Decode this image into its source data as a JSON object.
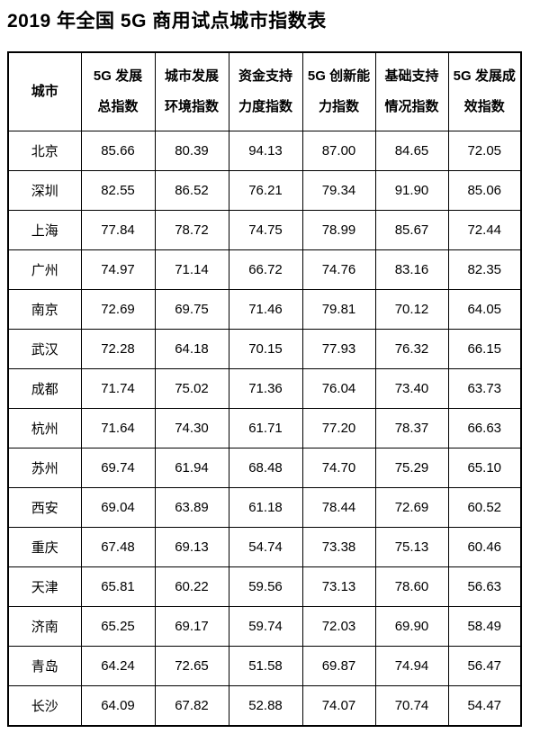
{
  "title": "2019 年全国 5G 商用试点城市指数表",
  "table": {
    "headers": [
      {
        "line1": "城市",
        "line2": ""
      },
      {
        "line1": "5G 发展",
        "line2": "总指数"
      },
      {
        "line1": "城市发展",
        "line2": "环境指数"
      },
      {
        "line1": "资金支持",
        "line2": "力度指数"
      },
      {
        "line1": "5G 创新能",
        "line2": "力指数"
      },
      {
        "line1": "基础支持",
        "line2": "情况指数"
      },
      {
        "line1": "5G 发展成",
        "line2": "效指数"
      }
    ],
    "rows": [
      {
        "city": "北京",
        "values": [
          "85.66",
          "80.39",
          "94.13",
          "87.00",
          "84.65",
          "72.05"
        ]
      },
      {
        "city": "深圳",
        "values": [
          "82.55",
          "86.52",
          "76.21",
          "79.34",
          "91.90",
          "85.06"
        ]
      },
      {
        "city": "上海",
        "values": [
          "77.84",
          "78.72",
          "74.75",
          "78.99",
          "85.67",
          "72.44"
        ]
      },
      {
        "city": "广州",
        "values": [
          "74.97",
          "71.14",
          "66.72",
          "74.76",
          "83.16",
          "82.35"
        ]
      },
      {
        "city": "南京",
        "values": [
          "72.69",
          "69.75",
          "71.46",
          "79.81",
          "70.12",
          "64.05"
        ]
      },
      {
        "city": "武汉",
        "values": [
          "72.28",
          "64.18",
          "70.15",
          "77.93",
          "76.32",
          "66.15"
        ]
      },
      {
        "city": "成都",
        "values": [
          "71.74",
          "75.02",
          "71.36",
          "76.04",
          "73.40",
          "63.73"
        ]
      },
      {
        "city": "杭州",
        "values": [
          "71.64",
          "74.30",
          "61.71",
          "77.20",
          "78.37",
          "66.63"
        ]
      },
      {
        "city": "苏州",
        "values": [
          "69.74",
          "61.94",
          "68.48",
          "74.70",
          "75.29",
          "65.10"
        ]
      },
      {
        "city": "西安",
        "values": [
          "69.04",
          "63.89",
          "61.18",
          "78.44",
          "72.69",
          "60.52"
        ]
      },
      {
        "city": "重庆",
        "values": [
          "67.48",
          "69.13",
          "54.74",
          "73.38",
          "75.13",
          "60.46"
        ]
      },
      {
        "city": "天津",
        "values": [
          "65.81",
          "60.22",
          "59.56",
          "73.13",
          "78.60",
          "56.63"
        ]
      },
      {
        "city": "济南",
        "values": [
          "65.25",
          "69.17",
          "59.74",
          "72.03",
          "69.90",
          "58.49"
        ]
      },
      {
        "city": "青岛",
        "values": [
          "64.24",
          "72.65",
          "51.58",
          "69.87",
          "74.94",
          "56.47"
        ]
      },
      {
        "city": "长沙",
        "values": [
          "64.09",
          "67.82",
          "52.88",
          "74.07",
          "70.74",
          "54.47"
        ]
      }
    ]
  }
}
